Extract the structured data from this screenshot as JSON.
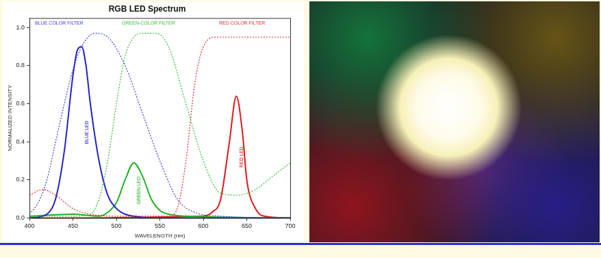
{
  "chart_data": {
    "type": "line",
    "title": "RGB LED Spectrum",
    "x_label": "WAVELENGTH (nm)",
    "y_label": "NORMALIZED INTENSITY",
    "xlim": [
      400,
      700
    ],
    "ylim": [
      0,
      1.05
    ],
    "xticks": [
      400,
      450,
      500,
      550,
      600,
      650,
      700
    ],
    "yticks": [
      {
        "value": 0,
        "label": "0.0"
      },
      0.2,
      0.4,
      0.6,
      0.8,
      {
        "value": 1,
        "label": "1.0"
      }
    ],
    "grid": false,
    "series": [
      {
        "name": "BLUE COLOR FILTER",
        "color": "#3a3ae0",
        "line_style": "dotted",
        "marker": "none",
        "x": [
          400,
          410,
          420,
          430,
          440,
          450,
          460,
          475,
          490,
          510,
          530,
          550,
          570,
          590,
          620,
          700
        ],
        "values": [
          0.02,
          0.08,
          0.2,
          0.4,
          0.6,
          0.78,
          0.9,
          0.97,
          0.95,
          0.8,
          0.55,
          0.3,
          0.1,
          0.03,
          0.01,
          0
        ]
      },
      {
        "name": "GREEN-COLOR FILTER",
        "color": "#2fbf2f",
        "line_style": "dotted",
        "marker": "none",
        "x": [
          400,
          450,
          470,
          480,
          490,
          500,
          510,
          520,
          530,
          545,
          560,
          580,
          600,
          620,
          640,
          660,
          680,
          700
        ],
        "values": [
          0.01,
          0.01,
          0.02,
          0.1,
          0.3,
          0.6,
          0.85,
          0.95,
          0.97,
          0.97,
          0.9,
          0.6,
          0.3,
          0.13,
          0.12,
          0.15,
          0.22,
          0.29
        ]
      },
      {
        "name": "RED COLOR FILTER",
        "color": "#e02828",
        "line_style": "dotted",
        "marker": "none",
        "x": [
          400,
          415,
          430,
          450,
          470,
          500,
          560,
          570,
          580,
          590,
          600,
          615,
          700
        ],
        "values": [
          0.12,
          0.15,
          0.12,
          0.05,
          0.02,
          0.01,
          0.01,
          0.05,
          0.3,
          0.7,
          0.9,
          0.95,
          0.95
        ]
      },
      {
        "name": "BLUE LED",
        "color": "#2020d0",
        "line_style": "solid",
        "marker": "none",
        "x": [
          400,
          420,
          430,
          440,
          450,
          455,
          460,
          465,
          470,
          480,
          490,
          500,
          510,
          520,
          540,
          700
        ],
        "values": [
          0,
          0.02,
          0.1,
          0.35,
          0.75,
          0.88,
          0.9,
          0.8,
          0.6,
          0.3,
          0.12,
          0.05,
          0.02,
          0.01,
          0,
          0
        ]
      },
      {
        "name": "GREEN LED",
        "color": "#22b022",
        "line_style": "solid",
        "marker": "none",
        "x": [
          400,
          450,
          480,
          490,
          500,
          510,
          520,
          530,
          540,
          550,
          560,
          580,
          700
        ],
        "values": [
          0.01,
          0.02,
          0.01,
          0.03,
          0.08,
          0.2,
          0.29,
          0.22,
          0.1,
          0.04,
          0.02,
          0.01,
          0
        ]
      },
      {
        "name": "RED LED",
        "color": "#e01818",
        "line_style": "solid",
        "marker": "none",
        "x": [
          400,
          600,
          610,
          620,
          630,
          638,
          645,
          650,
          660,
          670,
          700
        ],
        "values": [
          0,
          0.01,
          0.03,
          0.1,
          0.4,
          0.64,
          0.45,
          0.2,
          0.05,
          0.01,
          0
        ]
      }
    ]
  }
}
